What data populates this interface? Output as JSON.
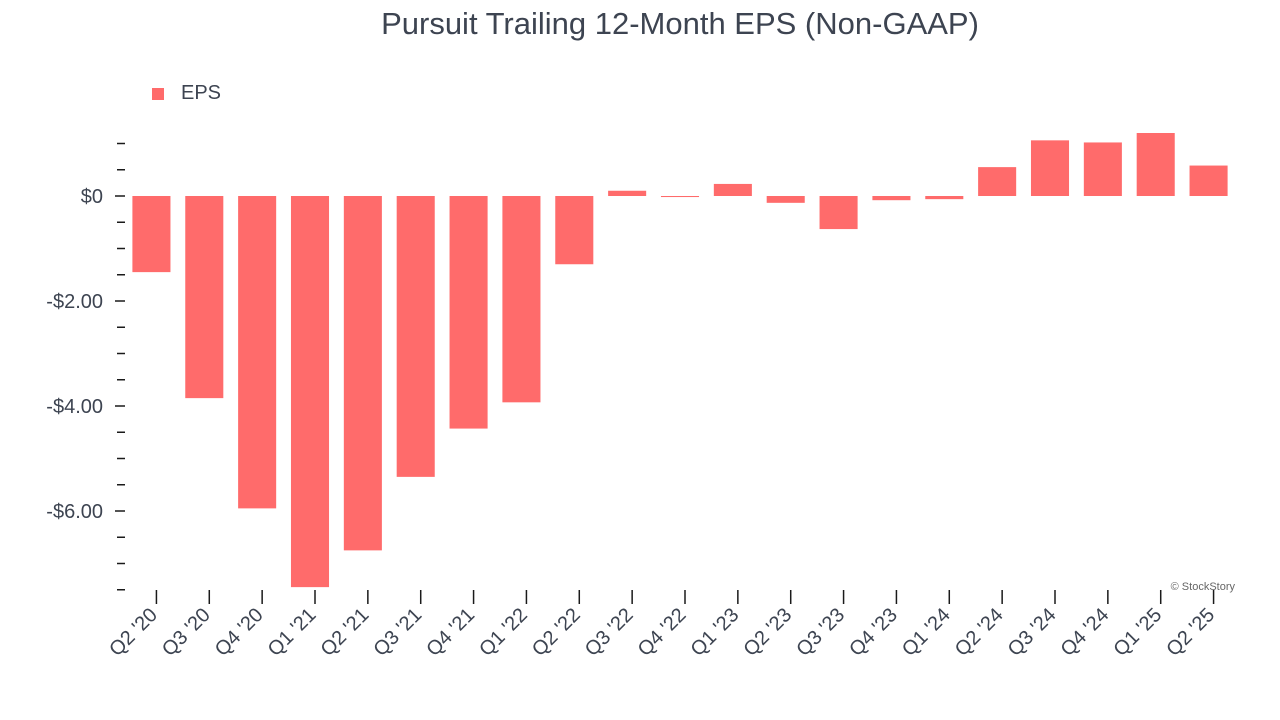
{
  "chart_data": {
    "type": "bar",
    "title": "Pursuit Trailing 12-Month EPS (Non-GAAP)",
    "xlabel": "",
    "ylabel": "",
    "ylim": [
      -7.5,
      1.0
    ],
    "categories": [
      "Q2 '20",
      "Q3 '20",
      "Q4 '20",
      "Q1 '21",
      "Q2 '21",
      "Q3 '21",
      "Q4 '21",
      "Q1 '22",
      "Q2 '22",
      "Q3 '22",
      "Q4 '22",
      "Q1 '23",
      "Q2 '23",
      "Q3 '23",
      "Q4 '23",
      "Q1 '24",
      "Q2 '24",
      "Q3 '24",
      "Q4 '24",
      "Q1 '25",
      "Q2 '25"
    ],
    "series": [
      {
        "name": "EPS",
        "color": "#ff6b6b",
        "values": [
          -1.45,
          -3.85,
          -5.95,
          -7.45,
          -6.75,
          -5.35,
          -4.43,
          -3.93,
          -1.3,
          0.1,
          -0.02,
          0.23,
          -0.13,
          -0.63,
          -0.08,
          -0.06,
          0.55,
          1.06,
          1.02,
          1.2,
          0.58
        ]
      }
    ],
    "yticks": [
      {
        "value": 0,
        "label": "$0"
      },
      {
        "value": -2,
        "label": "-$2.00"
      },
      {
        "value": -4,
        "label": "-$4.00"
      },
      {
        "value": -6,
        "label": "-$6.00"
      }
    ],
    "legend": {
      "position": "top-left",
      "entries": [
        "EPS"
      ]
    },
    "grid": false,
    "watermark": "© StockStory"
  }
}
